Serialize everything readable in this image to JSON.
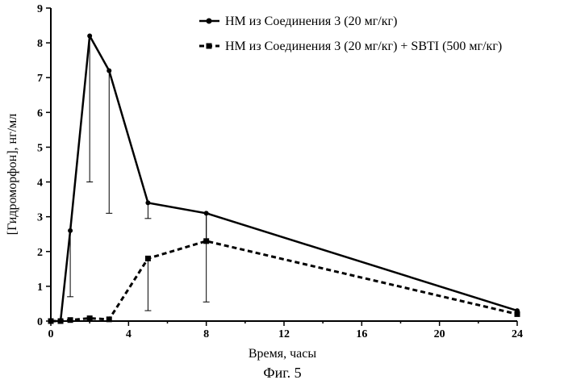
{
  "chart_data": {
    "type": "line",
    "xlabel": "Время, часы",
    "ylabel": "[Гидроморфон], нг/мл",
    "caption": "Фиг. 5",
    "xlim": [
      0,
      24
    ],
    "ylim": [
      0,
      9
    ],
    "xticks": [
      0,
      4,
      8,
      12,
      16,
      20,
      24
    ],
    "yticks": [
      0,
      1,
      2,
      3,
      4,
      5,
      6,
      7,
      8,
      9
    ],
    "legend_position": "top-right",
    "series": [
      {
        "name": "HM из Соединения 3 (20 мг/кг)",
        "style": "solid",
        "marker": "circle",
        "color": "#000000",
        "x": [
          0,
          0.5,
          1,
          2,
          3,
          5,
          8,
          24
        ],
        "y": [
          0,
          0,
          2.6,
          8.2,
          7.2,
          3.4,
          3.1,
          0.3
        ],
        "err_low": [
          null,
          null,
          0.7,
          4.0,
          3.1,
          2.95,
          0.55,
          null
        ]
      },
      {
        "name": "HM из Соединения 3 (20 мг/кг) + SBTI (500 мг/кг)",
        "style": "dashed",
        "marker": "square",
        "color": "#000000",
        "x": [
          0,
          0.5,
          1,
          2,
          3,
          5,
          8,
          24
        ],
        "y": [
          0,
          0,
          0.03,
          0.08,
          0.05,
          1.8,
          2.3,
          0.2
        ],
        "err_low": [
          null,
          null,
          null,
          null,
          null,
          0.3,
          null,
          null
        ],
        "err_high": [
          null,
          null,
          null,
          null,
          null,
          null,
          3.1,
          null
        ]
      }
    ]
  }
}
